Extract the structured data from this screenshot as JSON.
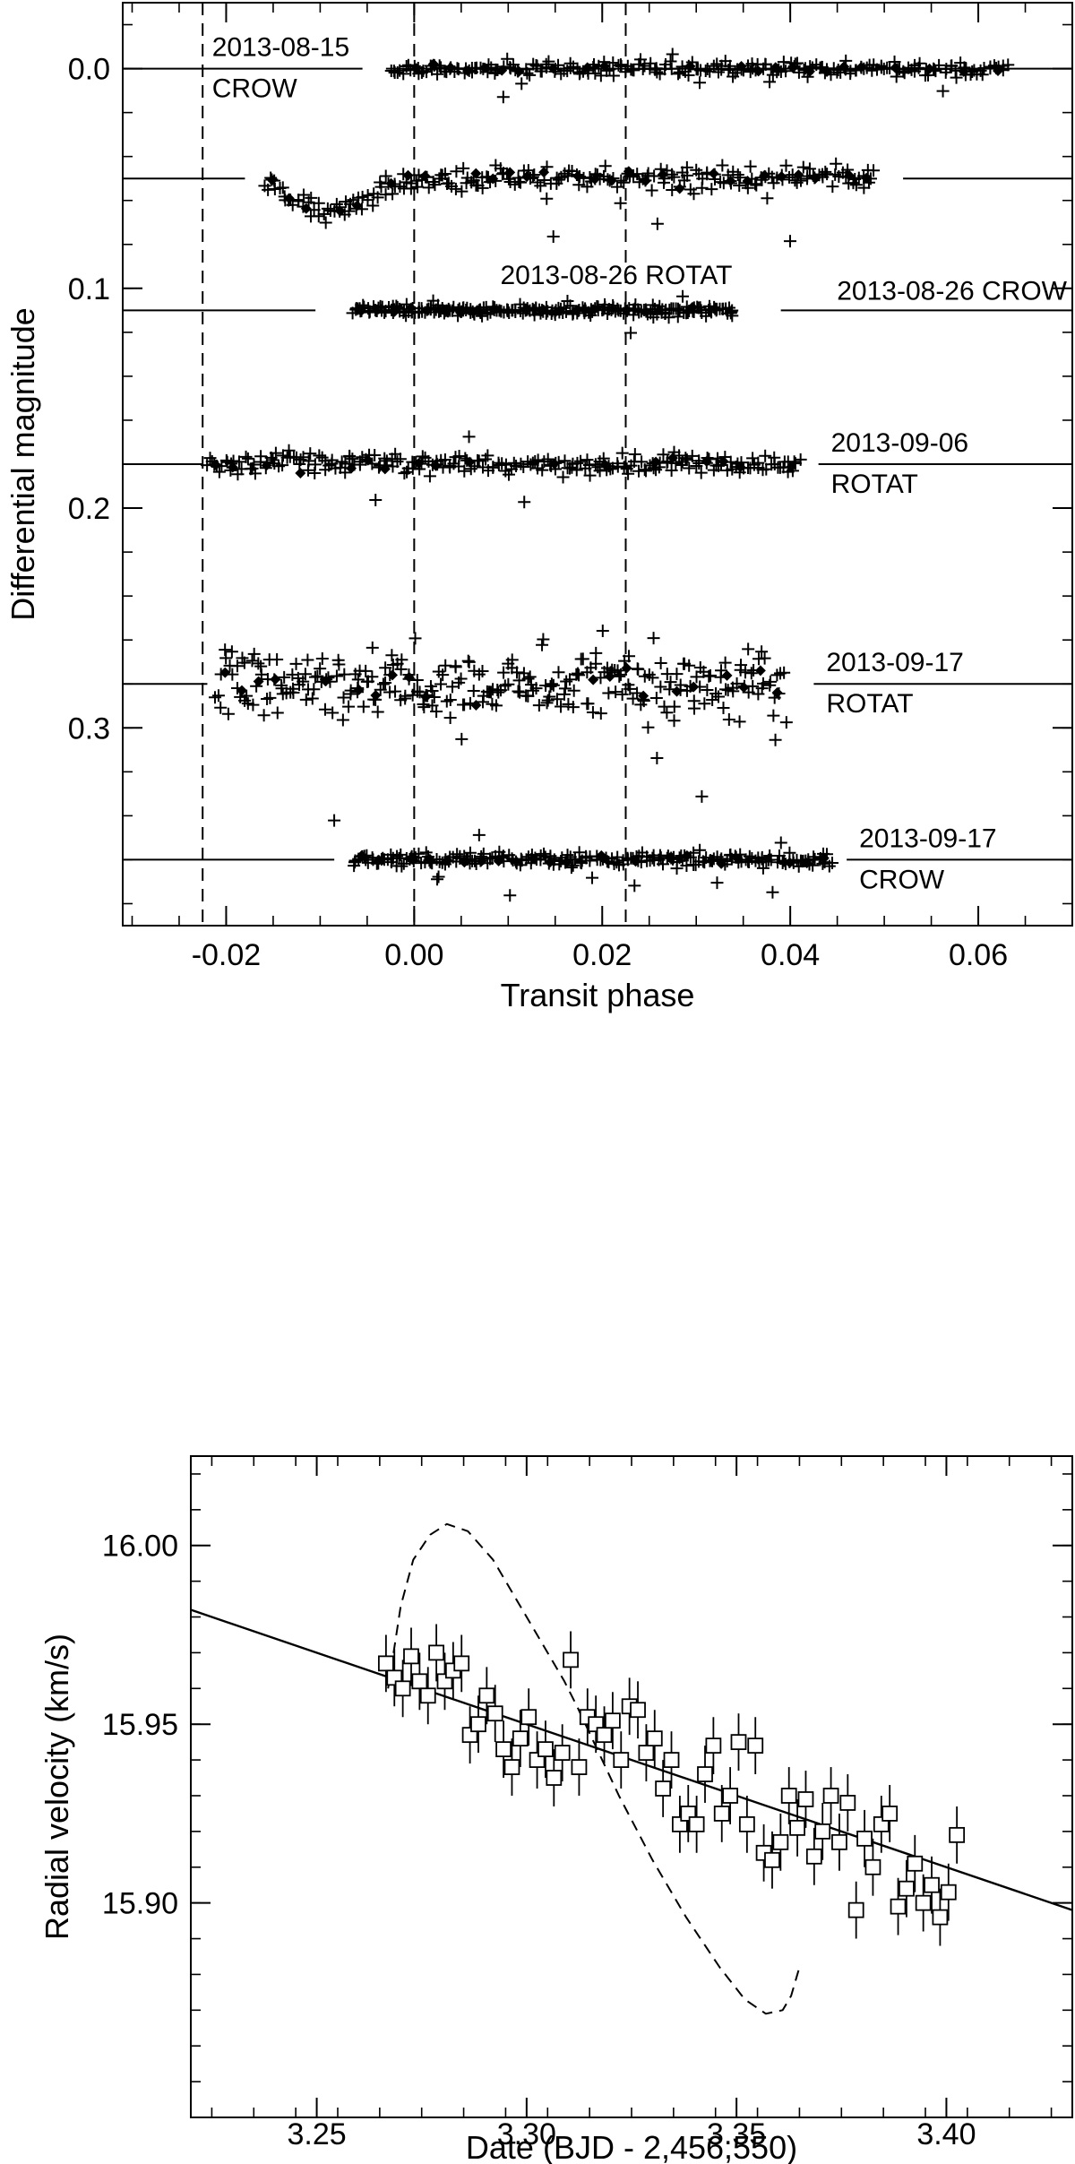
{
  "chart_data": [
    {
      "type": "scatter",
      "xlabel": "Transit phase",
      "ylabel": "Differential magnitude",
      "xlim": [
        -0.031,
        0.07
      ],
      "ylim": [
        0.39,
        -0.03
      ],
      "y_inverted": true,
      "x_ticks": [
        -0.02,
        0.0,
        0.02,
        0.04,
        0.06
      ],
      "x_tick_labels": [
        "-0.02",
        "0.00",
        "0.02",
        "0.04",
        "0.06"
      ],
      "y_ticks": [
        0.0,
        0.1,
        0.2,
        0.3
      ],
      "y_tick_labels": [
        "0.0",
        "0.1",
        "0.2",
        "0.3"
      ],
      "vertical_dashed_lines_x": [
        -0.0225,
        0.0,
        0.0225
      ],
      "marker_legend": {
        "individual": "+",
        "binned": "filled diamond"
      },
      "runs": [
        {
          "label_lines": [
            "2013-08-15",
            "CROW"
          ],
          "label_anchor": "upper-left-of-phase-0",
          "offset": 0.0,
          "x_range": [
            -0.0025,
            0.063
          ],
          "scatter": 0.004,
          "baseline_gap": [
            -0.0055,
            -0.003
          ],
          "has_binned": true,
          "dip": null
        },
        {
          "label_lines": [
            "2013-08-26 ROTAT"
          ],
          "label_anchor": "below-run",
          "offset": 0.05,
          "x_range": [
            -0.016,
            0.049
          ],
          "scatter": 0.007,
          "baseline_gap": [
            -0.018,
            0.052
          ],
          "has_binned": true,
          "dip": {
            "center": -0.009,
            "depth": 0.015,
            "width": 0.005
          }
        },
        {
          "label_lines": [
            "2013-08-26 CROW"
          ],
          "label_anchor": "right-above-baseline",
          "offset": 0.11,
          "x_range": [
            -0.0065,
            0.034
          ],
          "scatter": 0.003,
          "baseline_gap": [
            -0.0105,
            0.039
          ],
          "has_binned": true,
          "dip": null
        },
        {
          "label_lines": [
            "2013-09-06",
            "ROTAT"
          ],
          "label_anchor": "right",
          "offset": 0.18,
          "x_range": [
            -0.022,
            0.041
          ],
          "scatter": 0.006,
          "baseline_gap": [
            -0.0225,
            0.043
          ],
          "has_binned": true,
          "dip": null
        },
        {
          "label_lines": [
            "2013-09-17",
            "ROTAT"
          ],
          "label_anchor": "right",
          "offset": 0.28,
          "x_range": [
            -0.021,
            0.0395
          ],
          "scatter": 0.02,
          "baseline_gap": [
            -0.022,
            0.0425
          ],
          "has_binned": true,
          "dip": null
        },
        {
          "label_lines": [
            "2013-09-17",
            "CROW"
          ],
          "label_anchor": "right",
          "offset": 0.36,
          "x_range": [
            -0.0065,
            0.0445
          ],
          "scatter": 0.004,
          "baseline_gap": [
            -0.0085,
            0.046
          ],
          "has_binned": true,
          "dip": null
        }
      ]
    },
    {
      "type": "line",
      "xlabel": "Date (BJD - 2,456,550)",
      "ylabel": "Radial velocity (km/s)",
      "xlim": [
        3.22,
        3.43
      ],
      "ylim": [
        15.84,
        16.025
      ],
      "y_inverted": true,
      "x_ticks": [
        3.25,
        3.3,
        3.35,
        3.4
      ],
      "x_tick_labels": [
        "3.25",
        "3.30",
        "3.35",
        "3.40"
      ],
      "y_ticks": [
        15.9,
        15.95,
        16.0
      ],
      "y_tick_labels": [
        "15.90",
        "15.95",
        "16.00"
      ],
      "trend_line": {
        "x": [
          3.22,
          3.43
        ],
        "y": [
          15.982,
          15.898
        ]
      },
      "model_curve_dashed": {
        "x": [
          3.267,
          3.27,
          3.273,
          3.277,
          3.281,
          3.286,
          3.292,
          3.298,
          3.304,
          3.309,
          3.312,
          3.316,
          3.322,
          3.33,
          3.338,
          3.346,
          3.352,
          3.357,
          3.361,
          3.363,
          3.365
        ],
        "y": [
          15.96,
          15.983,
          15.996,
          16.003,
          16.006,
          16.004,
          15.996,
          15.984,
          15.972,
          15.962,
          15.955,
          15.945,
          15.93,
          15.912,
          15.896,
          15.882,
          15.873,
          15.869,
          15.87,
          15.874,
          15.882
        ]
      },
      "points": {
        "marker": "open square with error bar",
        "x": [
          3.2665,
          3.2685,
          3.2705,
          3.2725,
          3.2745,
          3.2765,
          3.2785,
          3.2805,
          3.2825,
          3.2845,
          3.2865,
          3.2885,
          3.2905,
          3.2925,
          3.2945,
          3.2965,
          3.2985,
          3.3005,
          3.3025,
          3.3045,
          3.3065,
          3.3085,
          3.3105,
          3.3125,
          3.3145,
          3.3165,
          3.3185,
          3.3205,
          3.3225,
          3.3245,
          3.3265,
          3.3285,
          3.3305,
          3.3325,
          3.3345,
          3.3365,
          3.3385,
          3.3405,
          3.3425,
          3.3445,
          3.3465,
          3.3485,
          3.3505,
          3.3525,
          3.3545,
          3.3565,
          3.3585,
          3.3605,
          3.3625,
          3.3645,
          3.3665,
          3.3685,
          3.3705,
          3.3725,
          3.3745,
          3.3765,
          3.3785,
          3.3805,
          3.3825,
          3.3845,
          3.3865,
          3.3885,
          3.3905,
          3.3925,
          3.3945,
          3.3965,
          3.3985,
          3.4005,
          3.4025
        ],
        "y": [
          15.967,
          15.963,
          15.96,
          15.969,
          15.962,
          15.958,
          15.97,
          15.962,
          15.965,
          15.967,
          15.947,
          15.95,
          15.958,
          15.953,
          15.943,
          15.938,
          15.946,
          15.952,
          15.94,
          15.943,
          15.935,
          15.942,
          15.968,
          15.938,
          15.952,
          15.95,
          15.947,
          15.951,
          15.94,
          15.955,
          15.954,
          15.942,
          15.946,
          15.932,
          15.94,
          15.922,
          15.925,
          15.922,
          15.936,
          15.944,
          15.925,
          15.93,
          15.945,
          15.922,
          15.944,
          15.914,
          15.912,
          15.917,
          15.93,
          15.921,
          15.929,
          15.913,
          15.92,
          15.93,
          15.917,
          15.928,
          15.898,
          15.918,
          15.91,
          15.922,
          15.925,
          15.899,
          15.904,
          15.911,
          15.9,
          15.905,
          15.896,
          15.903,
          15.919
        ],
        "error": 0.008
      }
    }
  ]
}
